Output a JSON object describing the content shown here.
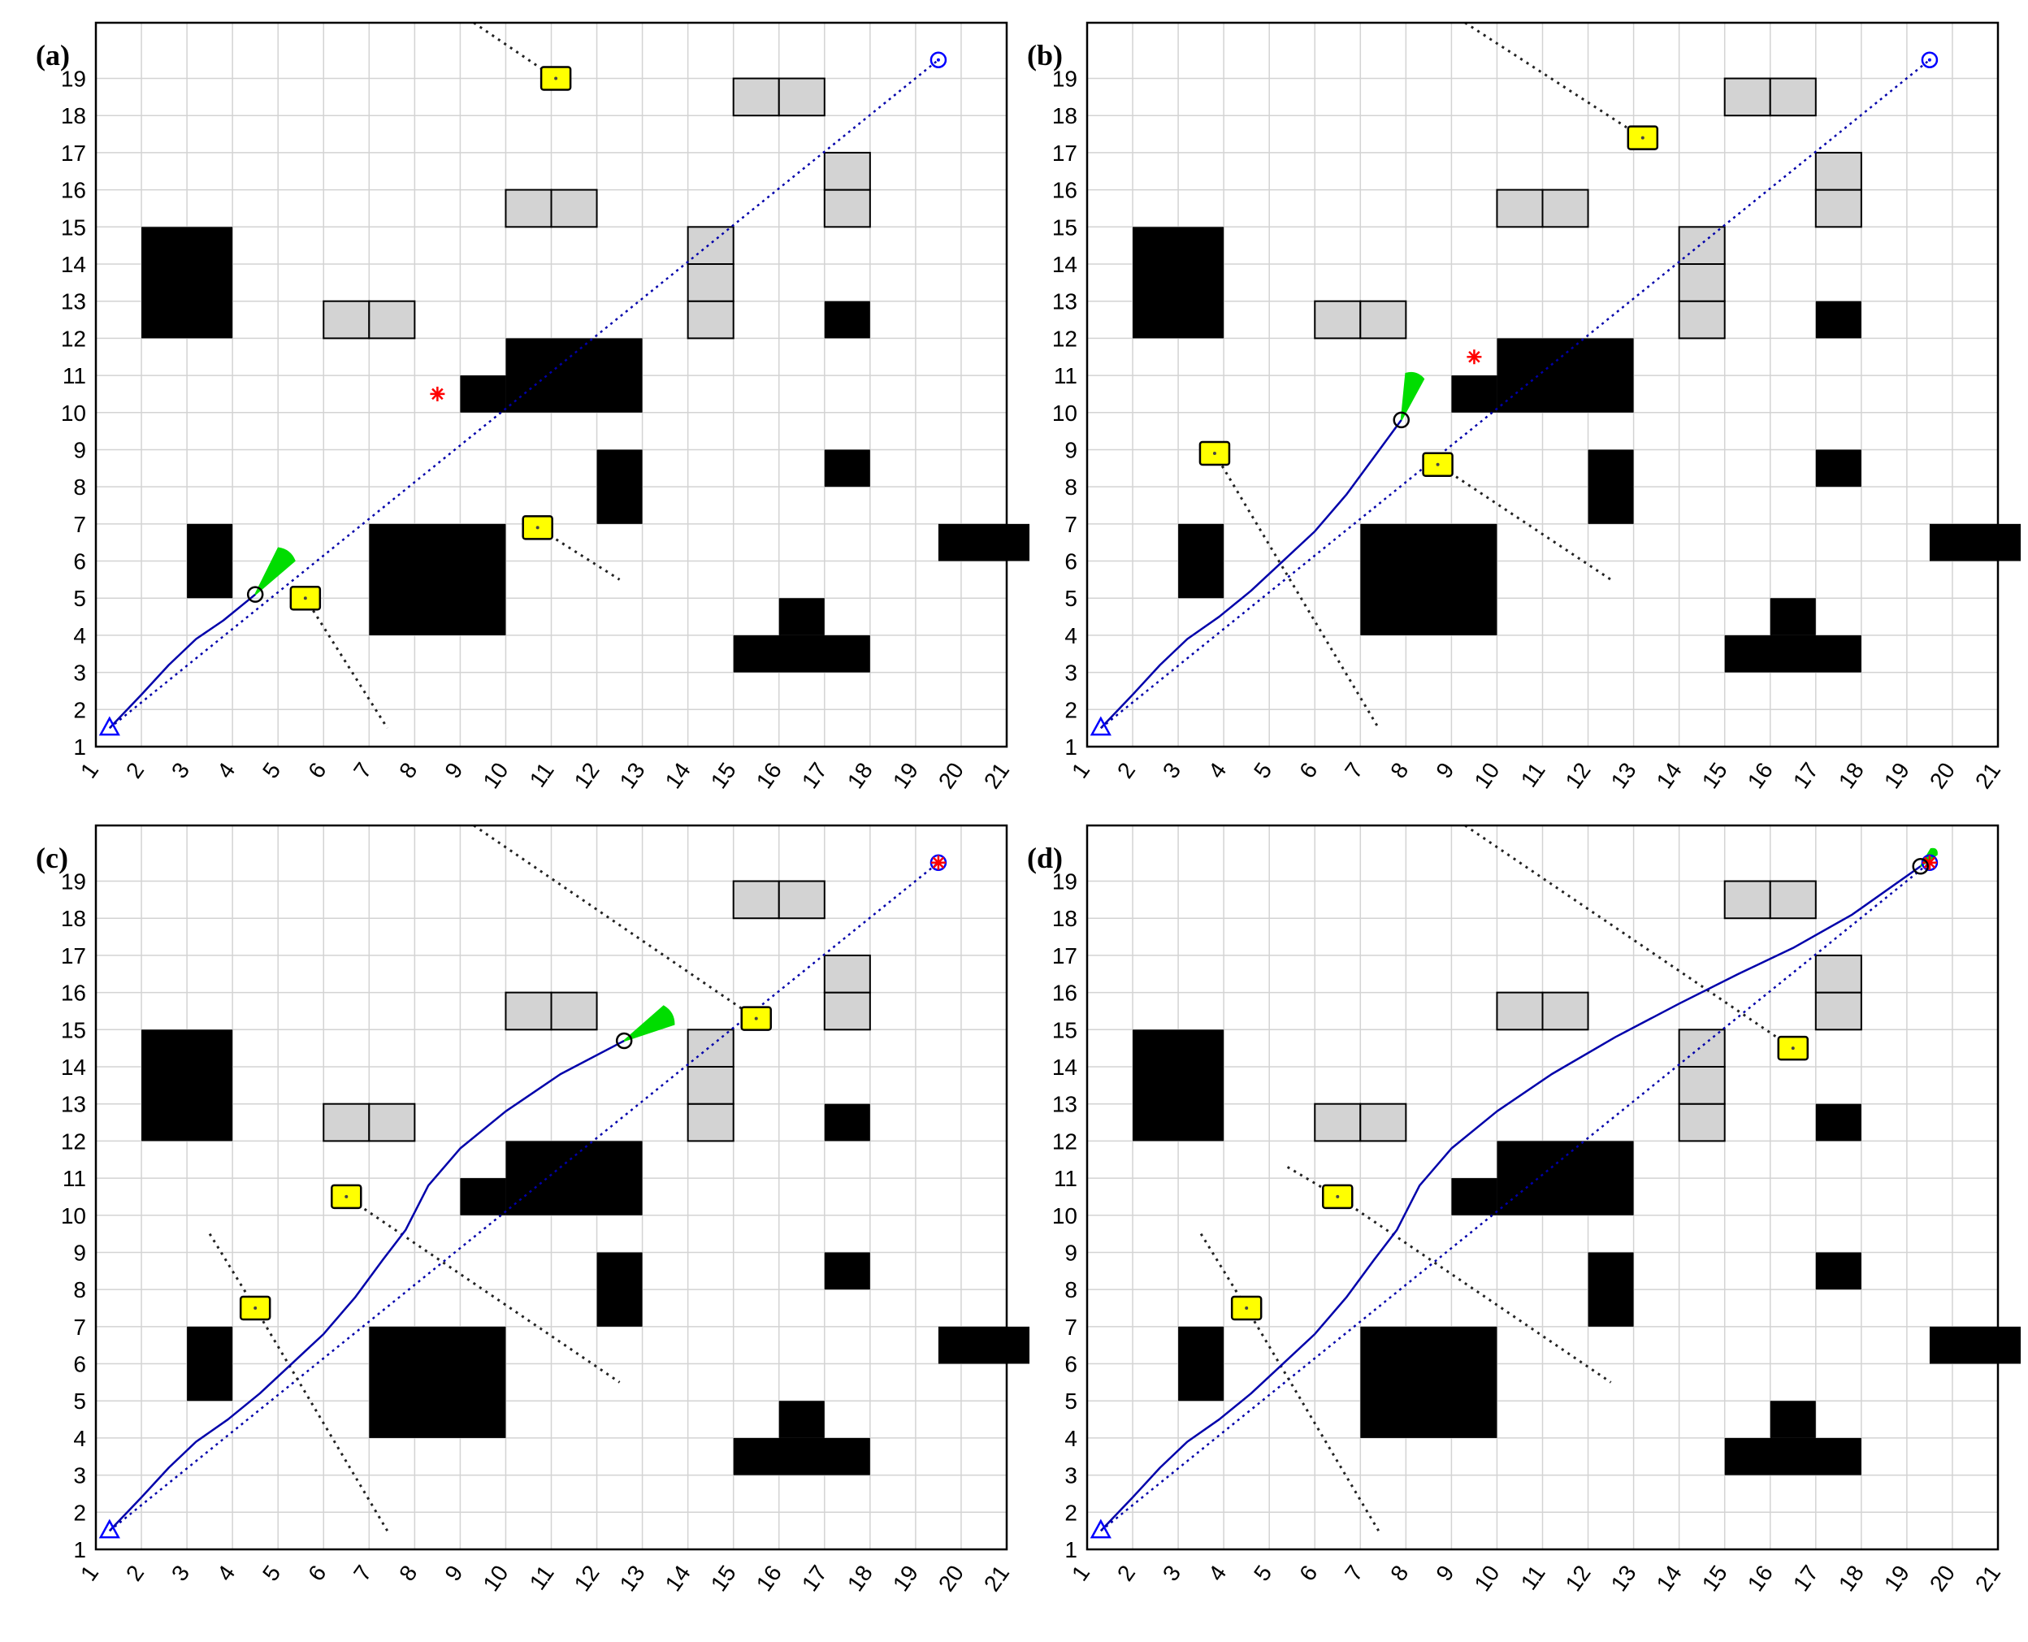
{
  "figure": {
    "panels": [
      {
        "label": "(a)",
        "robot": [
          4.5,
          5.1
        ],
        "heading": [
          5.2,
          6.2
        ],
        "travelled": [
          [
            1.3,
            1.5
          ],
          [
            2,
            2.4
          ],
          [
            2.6,
            3.2
          ],
          [
            3.2,
            3.9
          ],
          [
            3.8,
            4.4
          ],
          [
            4.5,
            5.1
          ]
        ],
        "dyn_obstacles": [
          {
            "pos": [
              11.1,
              19.0
            ],
            "trail_from": [
              9.3,
              20.5
            ]
          },
          {
            "pos": [
              5.6,
              5.0
            ],
            "trail_to": [
              7.4,
              1.5
            ]
          },
          {
            "pos": [
              10.7,
              6.9
            ],
            "trail_to": [
              12.5,
              5.5
            ]
          }
        ],
        "subgoal": [
          8.5,
          10.5
        ],
        "subgoal_visible": true,
        "goal_reached": false
      },
      {
        "label": "(b)",
        "robot": [
          7.9,
          9.8
        ],
        "heading": [
          8.2,
          11.0
        ],
        "travelled": [
          [
            1.3,
            1.5
          ],
          [
            2,
            2.4
          ],
          [
            2.6,
            3.2
          ],
          [
            3.2,
            3.9
          ],
          [
            3.9,
            4.5
          ],
          [
            4.6,
            5.2
          ],
          [
            5.3,
            6.0
          ],
          [
            6.0,
            6.8
          ],
          [
            6.7,
            7.8
          ],
          [
            7.3,
            8.8
          ],
          [
            7.9,
            9.8
          ]
        ],
        "dyn_obstacles": [
          {
            "pos": [
              13.2,
              17.4
            ],
            "trail_from": [
              9.3,
              20.5
            ]
          },
          {
            "pos": [
              3.8,
              8.9
            ],
            "trail_to": [
              7.4,
              1.5
            ]
          },
          {
            "pos": [
              8.7,
              8.6
            ],
            "trail_to": [
              12.5,
              5.5
            ]
          }
        ],
        "subgoal": [
          9.5,
          11.5
        ],
        "subgoal_visible": true,
        "goal_reached": false
      },
      {
        "label": "(c)",
        "robot": [
          12.6,
          14.7
        ],
        "heading": [
          13.6,
          15.4
        ],
        "travelled": [
          [
            1.3,
            1.5
          ],
          [
            2,
            2.4
          ],
          [
            2.6,
            3.2
          ],
          [
            3.2,
            3.9
          ],
          [
            3.9,
            4.5
          ],
          [
            4.6,
            5.2
          ],
          [
            5.3,
            6.0
          ],
          [
            6.0,
            6.8
          ],
          [
            6.7,
            7.8
          ],
          [
            7.3,
            8.8
          ],
          [
            7.8,
            9.6
          ],
          [
            8.3,
            10.8
          ],
          [
            9.0,
            11.8
          ],
          [
            10.0,
            12.8
          ],
          [
            11.2,
            13.8
          ],
          [
            12.6,
            14.7
          ]
        ],
        "dyn_obstacles": [
          {
            "pos": [
              15.5,
              15.3
            ],
            "trail_from": [
              9.3,
              20.5
            ]
          },
          {
            "pos": [
              4.5,
              7.5
            ],
            "trail_from": [
              3.5,
              9.5
            ],
            "trail_to": [
              7.4,
              1.5
            ]
          },
          {
            "pos": [
              6.5,
              10.5
            ],
            "trail_to": [
              12.5,
              5.5
            ]
          }
        ],
        "subgoal": [
          19.5,
          19.5
        ],
        "subgoal_visible": true,
        "goal_reached": false
      },
      {
        "label": "(d)",
        "robot": [
          19.3,
          19.4
        ],
        "heading": [
          19.6,
          19.8
        ],
        "travelled": [
          [
            1.3,
            1.5
          ],
          [
            2,
            2.4
          ],
          [
            2.6,
            3.2
          ],
          [
            3.2,
            3.9
          ],
          [
            3.9,
            4.5
          ],
          [
            4.6,
            5.2
          ],
          [
            5.3,
            6.0
          ],
          [
            6.0,
            6.8
          ],
          [
            6.7,
            7.8
          ],
          [
            7.3,
            8.8
          ],
          [
            7.8,
            9.6
          ],
          [
            8.3,
            10.8
          ],
          [
            9.0,
            11.8
          ],
          [
            10.0,
            12.8
          ],
          [
            11.2,
            13.8
          ],
          [
            12.6,
            14.8
          ],
          [
            14.0,
            15.7
          ],
          [
            15.3,
            16.5
          ],
          [
            16.5,
            17.2
          ],
          [
            17.8,
            18.1
          ],
          [
            19.3,
            19.4
          ]
        ],
        "dyn_obstacles": [
          {
            "pos": [
              16.5,
              14.5
            ],
            "trail_from": [
              9.3,
              20.5
            ]
          },
          {
            "pos": [
              4.5,
              7.5
            ],
            "trail_from": [
              3.5,
              9.5
            ],
            "trail_to": [
              7.4,
              1.5
            ]
          },
          {
            "pos": [
              6.5,
              10.5
            ],
            "trail_from": [
              5.4,
              11.3
            ],
            "trail_to": [
              12.5,
              5.5
            ]
          }
        ],
        "subgoal": [
          19.5,
          19.5
        ],
        "subgoal_visible": true,
        "goal_reached": true
      }
    ],
    "map": {
      "x_ticks": [
        1,
        2,
        3,
        4,
        5,
        6,
        7,
        8,
        9,
        10,
        11,
        12,
        13,
        14,
        15,
        16,
        17,
        18,
        19,
        20,
        21
      ],
      "y_ticks": [
        1,
        2,
        3,
        4,
        5,
        6,
        7,
        8,
        9,
        10,
        11,
        12,
        13,
        14,
        15,
        16,
        17,
        18,
        19
      ],
      "xlim": [
        1,
        21
      ],
      "ylim": [
        1,
        20.5
      ],
      "start": [
        1.3,
        1.5
      ],
      "goal": [
        19.5,
        19.5
      ],
      "planned_path": [
        [
          1.3,
          1.5
        ],
        [
          19.5,
          19.5
        ]
      ],
      "black_obstacles": [
        [
          2,
          12,
          2,
          3
        ],
        [
          3,
          5,
          1,
          2
        ],
        [
          7,
          4,
          3,
          3
        ],
        [
          9,
          10,
          1,
          1
        ],
        [
          10,
          10,
          3,
          2
        ],
        [
          12,
          7,
          1,
          2
        ],
        [
          15,
          3,
          3,
          1
        ],
        [
          16,
          4,
          1,
          1
        ],
        [
          17,
          12,
          1,
          1
        ],
        [
          17,
          8,
          1,
          1
        ],
        [
          19.5,
          6,
          2,
          1
        ]
      ],
      "gray_cells": [
        [
          6,
          12
        ],
        [
          7,
          12
        ],
        [
          10,
          15
        ],
        [
          11,
          15
        ],
        [
          14,
          12
        ],
        [
          14,
          13
        ],
        [
          14,
          14
        ],
        [
          15,
          18
        ],
        [
          16,
          18
        ],
        [
          17,
          15
        ],
        [
          17,
          16
        ]
      ]
    },
    "colors": {
      "grid": "#d3d3d3",
      "obstacle_static": "#000000",
      "obstacle_gray": "#d3d3d3",
      "dynamic_obstacle": "#ffff00",
      "planned_path": "#0000aa",
      "travelled_path": "#0000aa",
      "heading_sector": "#00dd00",
      "subgoal": "#ff0000",
      "goal": "#0000ff",
      "robot": "#000000"
    }
  }
}
